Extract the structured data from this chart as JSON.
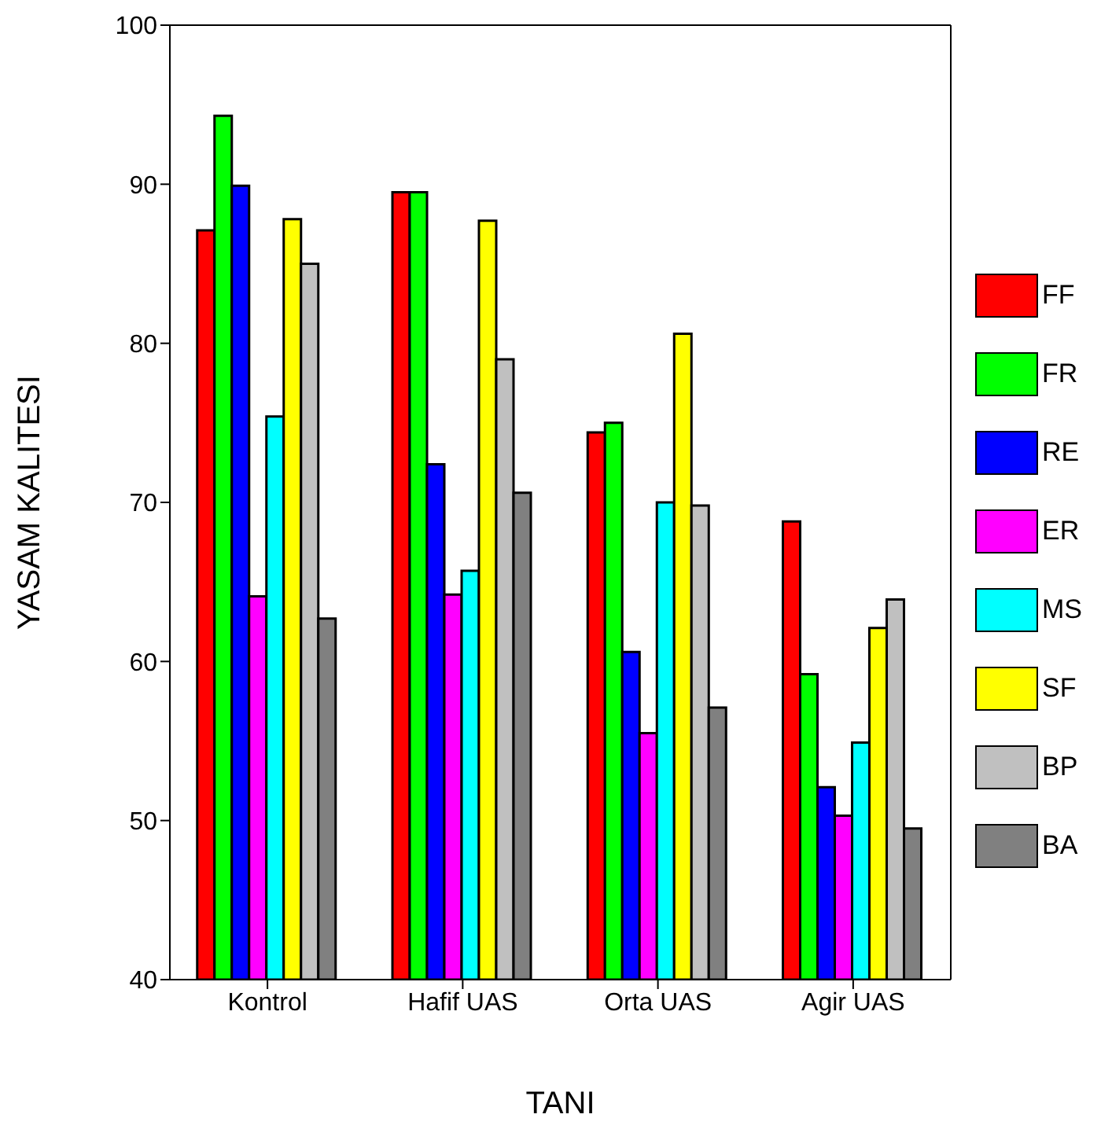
{
  "chart_data": {
    "type": "bar",
    "xlabel": "TANI",
    "ylabel": "YASAM KALITESI",
    "categories": [
      "Kontrol",
      "Hafif UAS",
      "Orta UAS",
      "Agir UAS"
    ],
    "series": [
      {
        "name": "FF",
        "color": "#ff0000",
        "values": [
          87.1,
          89.5,
          74.4,
          68.8
        ]
      },
      {
        "name": "FR",
        "color": "#00ff00",
        "values": [
          94.3,
          89.5,
          75.0,
          59.2
        ]
      },
      {
        "name": "RE",
        "color": "#0000ff",
        "values": [
          89.9,
          72.4,
          60.6,
          52.1
        ]
      },
      {
        "name": "ER",
        "color": "#ff00ff",
        "values": [
          64.1,
          64.2,
          55.5,
          50.3
        ]
      },
      {
        "name": "MS",
        "color": "#00ffff",
        "values": [
          75.4,
          65.7,
          70.0,
          54.9
        ]
      },
      {
        "name": "SF",
        "color": "#ffff00",
        "values": [
          87.8,
          87.7,
          80.6,
          62.1
        ]
      },
      {
        "name": "BP",
        "color": "#c0c0c0",
        "values": [
          85.0,
          79.0,
          69.8,
          63.9
        ]
      },
      {
        "name": "BA",
        "color": "#808080",
        "values": [
          62.7,
          70.6,
          57.1,
          49.5
        ]
      }
    ],
    "ylim": [
      40,
      100
    ],
    "yticks": [
      40,
      50,
      60,
      70,
      80,
      90,
      100
    ],
    "grid": false,
    "legend": "right"
  }
}
